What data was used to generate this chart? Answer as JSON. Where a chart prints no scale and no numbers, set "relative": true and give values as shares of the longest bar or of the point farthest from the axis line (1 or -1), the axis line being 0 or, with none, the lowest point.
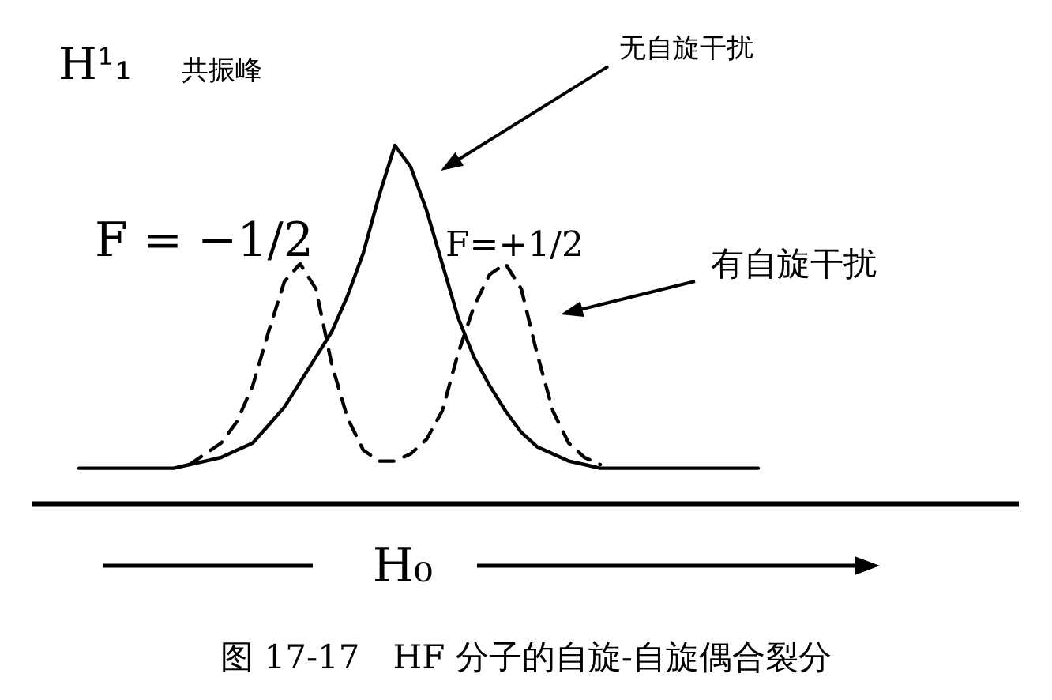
{
  "chart_data": {
    "type": "line",
    "relative": true,
    "title": "图 17-17　HF 分子的自旋-自旋偶合裂分",
    "xlabel": "H₀",
    "annotations": [
      "H¹₁",
      "共振峰",
      "F = −1/2",
      "F=+1/2"
    ],
    "categories": [
      null,
      null,
      null,
      null,
      null,
      null,
      null,
      null,
      null,
      null,
      null,
      null,
      null,
      null,
      null,
      null,
      null,
      null,
      null,
      null,
      null,
      null,
      null,
      null,
      null,
      null,
      null,
      null,
      null,
      null,
      null,
      null,
      null,
      null,
      null,
      null,
      null,
      null,
      null,
      null,
      null,
      null,
      null,
      null
    ],
    "series": [
      {
        "name": "无自旋干扰",
        "color": "#000000",
        "line_style": "solid",
        "values": [
          0.1,
          0.1,
          0.1,
          0.1,
          0.1,
          0.1,
          0.1,
          0.11,
          0.12,
          0.13,
          0.15,
          0.17,
          0.22,
          0.27,
          0.34,
          0.41,
          0.48,
          0.58,
          0.7,
          0.86,
          1,
          0.94,
          0.82,
          0.67,
          0.52,
          0.41,
          0.33,
          0.26,
          0.2,
          0.16,
          0.14,
          0.12,
          0.11,
          0.1,
          0.1,
          0.1,
          0.1,
          0.1,
          0.1,
          0.1,
          0.1,
          0.1,
          0.1,
          0.1
        ]
      },
      {
        "name": "有自旋干扰",
        "color": "#000000",
        "line_style": "dashed",
        "values": [
          null,
          null,
          null,
          null,
          null,
          null,
          null,
          0.11,
          0.14,
          0.17,
          0.23,
          0.33,
          0.48,
          0.62,
          0.67,
          0.6,
          0.39,
          0.24,
          0.15,
          0.12,
          0.12,
          0.14,
          0.18,
          0.26,
          0.42,
          0.55,
          0.64,
          0.67,
          0.6,
          0.42,
          0.26,
          0.17,
          0.13,
          0.11,
          null,
          null,
          null,
          null,
          null,
          null,
          null,
          null,
          null,
          null
        ]
      }
    ]
  }
}
